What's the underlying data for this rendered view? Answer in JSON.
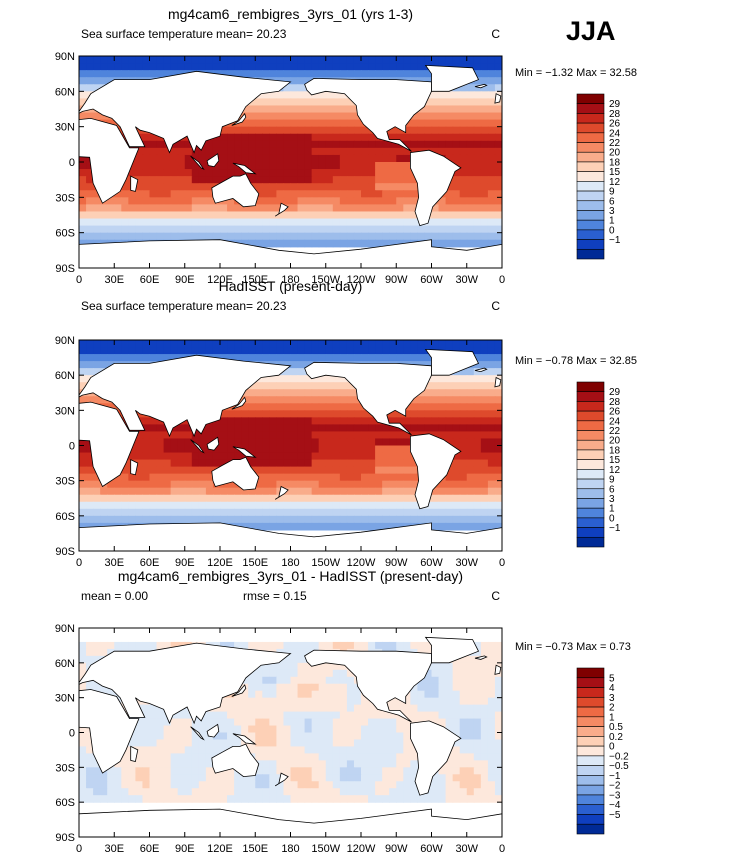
{
  "season_label": "JJA",
  "lat_ticks": [
    "90N",
    "60N",
    "30N",
    "0",
    "30S",
    "60S",
    "90S"
  ],
  "lon_ticks": [
    "0",
    "30E",
    "60E",
    "90E",
    "120E",
    "150E",
    "180",
    "150W",
    "120W",
    "90W",
    "60W",
    "30W",
    "0"
  ],
  "palette_warm": [
    "#ffffff",
    "#fbe0cf",
    "#f7c4a8",
    "#f4a583",
    "#ef865f",
    "#e7673f",
    "#d9492a",
    "#c42a1c",
    "#a20f13",
    "#7c0007"
  ],
  "palette_cool": [
    "#eaf1fb",
    "#cddff6",
    "#a9c6ef",
    "#86aeea",
    "#5f91e1",
    "#3a73d6",
    "#1f55c7",
    "#0d3bb2",
    "#062694",
    "#00147a"
  ],
  "chart_data": [
    {
      "type": "heatmap",
      "title": "mg4cam6_rembigres_3yrs_01 (yrs 1-3)",
      "left_string": "Sea surface temperature",
      "center_string": "mean=   20.23",
      "units": "C",
      "min_max": "Min =   −1.32  Max =   32.58",
      "colorbar_levels": [
        "29",
        "28",
        "26",
        "24",
        "22",
        "20",
        "18",
        "15",
        "12",
        "9",
        "6",
        "3",
        "1",
        "0",
        "−1"
      ],
      "colorbar_colors": [
        "#7f0000",
        "#a50f15",
        "#c8281c",
        "#de4a2c",
        "#ee6a44",
        "#f58a64",
        "#f9ac8b",
        "#fdd0b6",
        "#fde8dc",
        "#dde9f7",
        "#bfd4f2",
        "#9dbdeb",
        "#7aa4e4",
        "#4f84dc",
        "#2a5fd0",
        "#0f3fbf",
        "#002a96"
      ],
      "range": [
        -1.32,
        32.58
      ],
      "mean": 20.23,
      "field": "sst_model"
    },
    {
      "type": "heatmap",
      "title": "HadISST (present-day)",
      "left_string": "Sea surface temperature",
      "center_string": "mean=   20.23",
      "units": "C",
      "min_max": "Min =   −0.78  Max =   32.85",
      "colorbar_levels": [
        "29",
        "28",
        "26",
        "24",
        "22",
        "20",
        "18",
        "15",
        "12",
        "9",
        "6",
        "3",
        "1",
        "0",
        "−1"
      ],
      "colorbar_colors": [
        "#7f0000",
        "#a50f15",
        "#c8281c",
        "#de4a2c",
        "#ee6a44",
        "#f58a64",
        "#f9ac8b",
        "#fdd0b6",
        "#fde8dc",
        "#dde9f7",
        "#bfd4f2",
        "#9dbdeb",
        "#7aa4e4",
        "#4f84dc",
        "#2a5fd0",
        "#0f3fbf",
        "#002a96"
      ],
      "range": [
        -0.78,
        32.85
      ],
      "mean": 20.23,
      "field": "sst_obs"
    },
    {
      "type": "heatmap",
      "title": "mg4cam6_rembigres_3yrs_01 - HadISST (present-day)",
      "left_string": "mean =    0.00",
      "center_string": "rmse =    0.15",
      "units": "C",
      "min_max": "Min =   −0.73  Max =    0.73",
      "colorbar_levels": [
        "5",
        "4",
        "3",
        "2",
        "1",
        "0.5",
        "0.2",
        "0",
        "−0.2",
        "−0.5",
        "−1",
        "−2",
        "−3",
        "−4",
        "−5"
      ],
      "colorbar_colors": [
        "#7f0000",
        "#a50f15",
        "#c8281c",
        "#de4a2c",
        "#ee6a44",
        "#f58a64",
        "#f9ac8b",
        "#fdd0b6",
        "#fde8dc",
        "#dde9f7",
        "#bfd4f2",
        "#9dbdeb",
        "#7aa4e4",
        "#4f84dc",
        "#2a5fd0",
        "#0f3fbf",
        "#002a96"
      ],
      "range": [
        -0.73,
        0.73
      ],
      "mean": 0.0,
      "rmse": 0.15,
      "field": "sst_diff"
    }
  ]
}
